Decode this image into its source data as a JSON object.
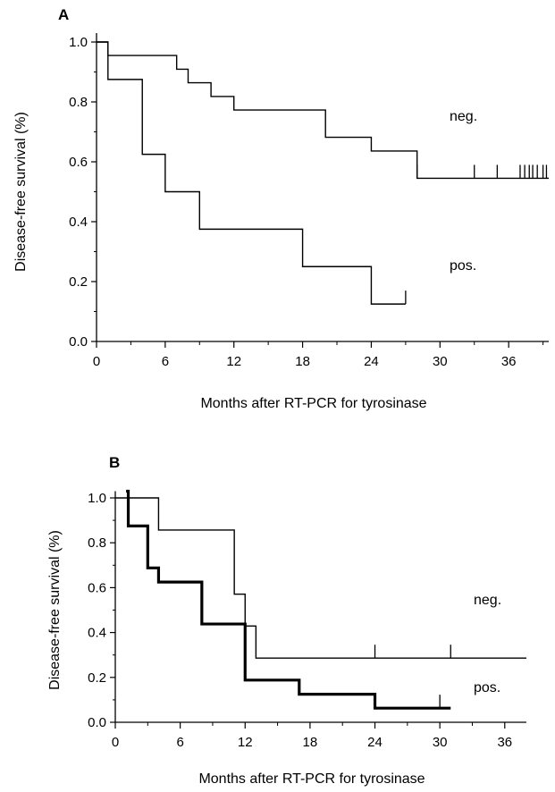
{
  "chart_data": [
    {
      "type": "line",
      "panel_label": "A",
      "xlabel": "Months after RT-PCR for tyrosinase",
      "ylabel": "Disease-free survival (%)",
      "xlim": [
        0,
        39.5
      ],
      "ylim": [
        0,
        1.0
      ],
      "x_ticks": [
        "0",
        "6",
        "12",
        "18",
        "24",
        "30",
        "36"
      ],
      "y_ticks": [
        "0.0",
        "0.2",
        "0.4",
        "0.6",
        "0.8",
        "1.0"
      ],
      "series": [
        {
          "name": "neg.",
          "step": true,
          "x": [
            0,
            1,
            7,
            8,
            10,
            12,
            20,
            24,
            28,
            39.5
          ],
          "y": [
            1.0,
            0.955,
            0.909,
            0.864,
            0.818,
            0.773,
            0.682,
            0.636,
            0.545,
            0.545
          ],
          "censored_x": [
            28,
            33,
            35,
            37,
            37.4,
            37.8,
            38.1,
            38.5,
            39,
            39.3
          ]
        },
        {
          "name": "pos.",
          "step": true,
          "x": [
            0,
            1,
            4,
            6,
            9,
            18,
            24,
            27
          ],
          "y": [
            1.0,
            0.875,
            0.625,
            0.5,
            0.375,
            0.25,
            0.125,
            0.125
          ],
          "censored_x": [
            27
          ]
        }
      ]
    },
    {
      "type": "line",
      "panel_label": "B",
      "xlabel": "Months after RT-PCR for tyrosinase",
      "ylabel": "Disease-free survival (%)",
      "xlim": [
        0,
        38
      ],
      "ylim": [
        0,
        1.0
      ],
      "x_ticks": [
        "0",
        "6",
        "12",
        "18",
        "24",
        "30",
        "36"
      ],
      "y_ticks": [
        "0.0",
        "0.2",
        "0.4",
        "0.6",
        "0.8",
        "1.0"
      ],
      "series": [
        {
          "name": "neg.",
          "step": true,
          "x": [
            0,
            4,
            11,
            12,
            13,
            38
          ],
          "y": [
            1.0,
            0.857,
            0.571,
            0.429,
            0.286,
            0.286
          ],
          "censored_x": [
            24,
            31
          ]
        },
        {
          "name": "pos.",
          "step": true,
          "thick": true,
          "x": [
            1,
            1.2,
            3,
            4,
            8,
            12,
            17,
            24,
            31
          ],
          "y": [
            1.03,
            0.875,
            0.688,
            0.625,
            0.438,
            0.188,
            0.125,
            0.063,
            0.063
          ],
          "censored_x": [
            30
          ]
        }
      ]
    }
  ]
}
